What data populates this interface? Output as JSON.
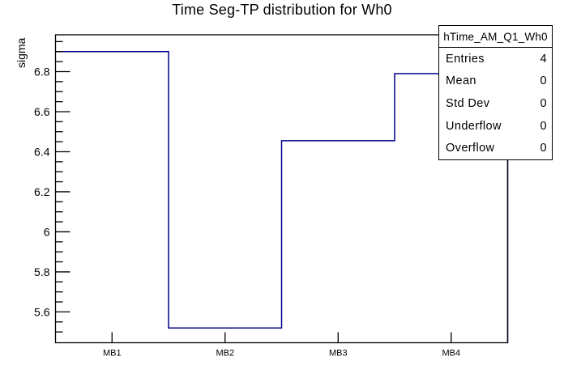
{
  "chart_data": {
    "type": "line",
    "style": "step-histogram",
    "title": "Time Seg-TP distribution for Wh0",
    "categories": [
      "MB1",
      "MB2",
      "MB3",
      "MB4"
    ],
    "values": [
      6.9,
      5.52,
      6.455,
      6.79
    ],
    "xlabel": "",
    "ylabel": "sigma",
    "ylim": [
      5.446,
      6.984
    ],
    "y_major_ticks": [
      {
        "value": 5.6,
        "label": "5.6"
      },
      {
        "value": 5.8,
        "label": "5.8"
      },
      {
        "value": 6.0,
        "label": "6"
      },
      {
        "value": 6.2,
        "label": "6.2"
      },
      {
        "value": 6.4,
        "label": "6.4"
      },
      {
        "value": 6.6,
        "label": "6.6"
      },
      {
        "value": 6.8,
        "label": "6.8"
      }
    ],
    "y_minor_tick_step": 0.05,
    "line_color": "#00008c",
    "frame_color": "#000000",
    "background": "#ffffff",
    "grid": false,
    "legend_position": "none"
  },
  "stats_box": {
    "header": "hTime_AM_Q1_Wh0",
    "rows": [
      {
        "label": "Entries",
        "value": "4"
      },
      {
        "label": "Mean",
        "value": "0"
      },
      {
        "label": "Std Dev",
        "value": "0"
      },
      {
        "label": "Underflow",
        "value": "0"
      },
      {
        "label": "Overflow",
        "value": "0"
      }
    ]
  }
}
